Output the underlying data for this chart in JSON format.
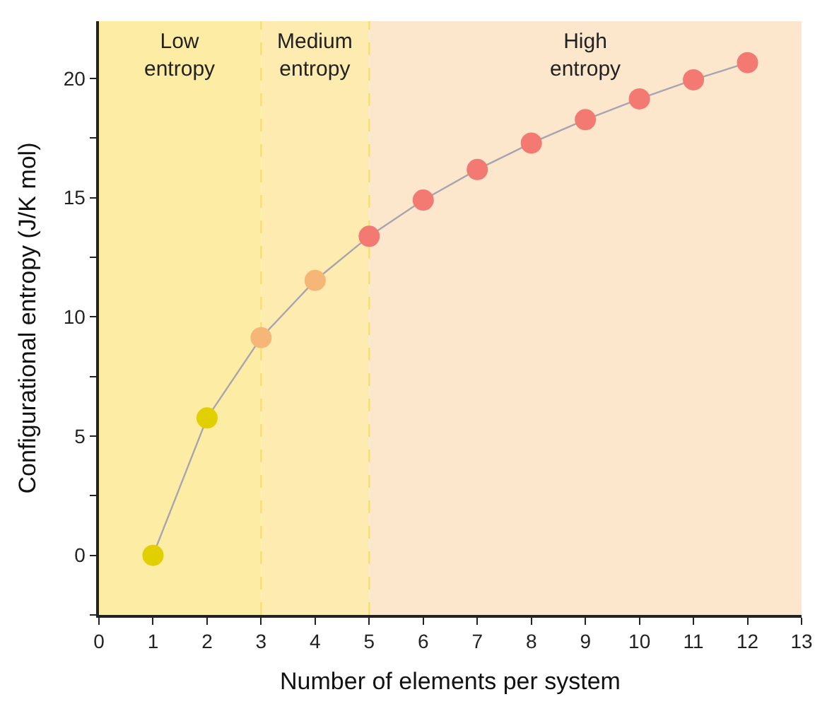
{
  "chart_data": {
    "type": "line",
    "xlabel": "Number of elements per system",
    "ylabel": "Configurational entropy (J/K mol)",
    "x": [
      1,
      2,
      3,
      4,
      5,
      6,
      7,
      8,
      9,
      10,
      11,
      12
    ],
    "series": [
      {
        "color": "#a8a4b0",
        "colors": [
          "#e2cf00",
          "#e2cf00",
          "#f6b678",
          "#f6b678",
          "#f27a72",
          "#f27a72",
          "#f27a72",
          "#f27a72",
          "#f27a72",
          "#f27a72",
          "#f27a72",
          "#f27a72"
        ],
        "values": [
          0,
          5.76,
          9.13,
          11.53,
          13.38,
          14.9,
          16.18,
          17.29,
          18.27,
          19.14,
          19.94,
          20.66
        ]
      }
    ],
    "xlim": [
      0,
      13
    ],
    "xticks": [
      0,
      1,
      2,
      3,
      4,
      5,
      6,
      7,
      8,
      9,
      10,
      11,
      12,
      13
    ],
    "ylim": [
      -2.5,
      22.4
    ],
    "yticks": [
      {
        "value": -2.5,
        "label": null
      },
      0,
      {
        "value": 2.5,
        "label": null
      },
      5,
      {
        "value": 7.5,
        "label": null
      },
      10,
      {
        "value": 12.5,
        "label": null
      },
      15,
      {
        "value": 17.5,
        "label": null
      },
      20
    ],
    "bands": [
      {
        "axis": "x",
        "from": 0,
        "to": 3,
        "label": "Low\nentropy",
        "color": "#fdeda4"
      },
      {
        "axis": "x",
        "from": 3,
        "to": 5,
        "label": "Medium\nentropy",
        "color": "#fdebb0"
      },
      {
        "axis": "x",
        "from": 5,
        "to": 13,
        "label": "High\nentropy",
        "color": "#fde7cc"
      }
    ],
    "ref_lines": [
      {
        "axis": "x",
        "value": 3,
        "color": "#f8dc60",
        "line_style": "dashed"
      },
      {
        "axis": "x",
        "value": 5,
        "color": "#f8dc60",
        "line_style": "dashed"
      }
    ],
    "marker": "circle",
    "line_style": "solid",
    "grid": false
  }
}
